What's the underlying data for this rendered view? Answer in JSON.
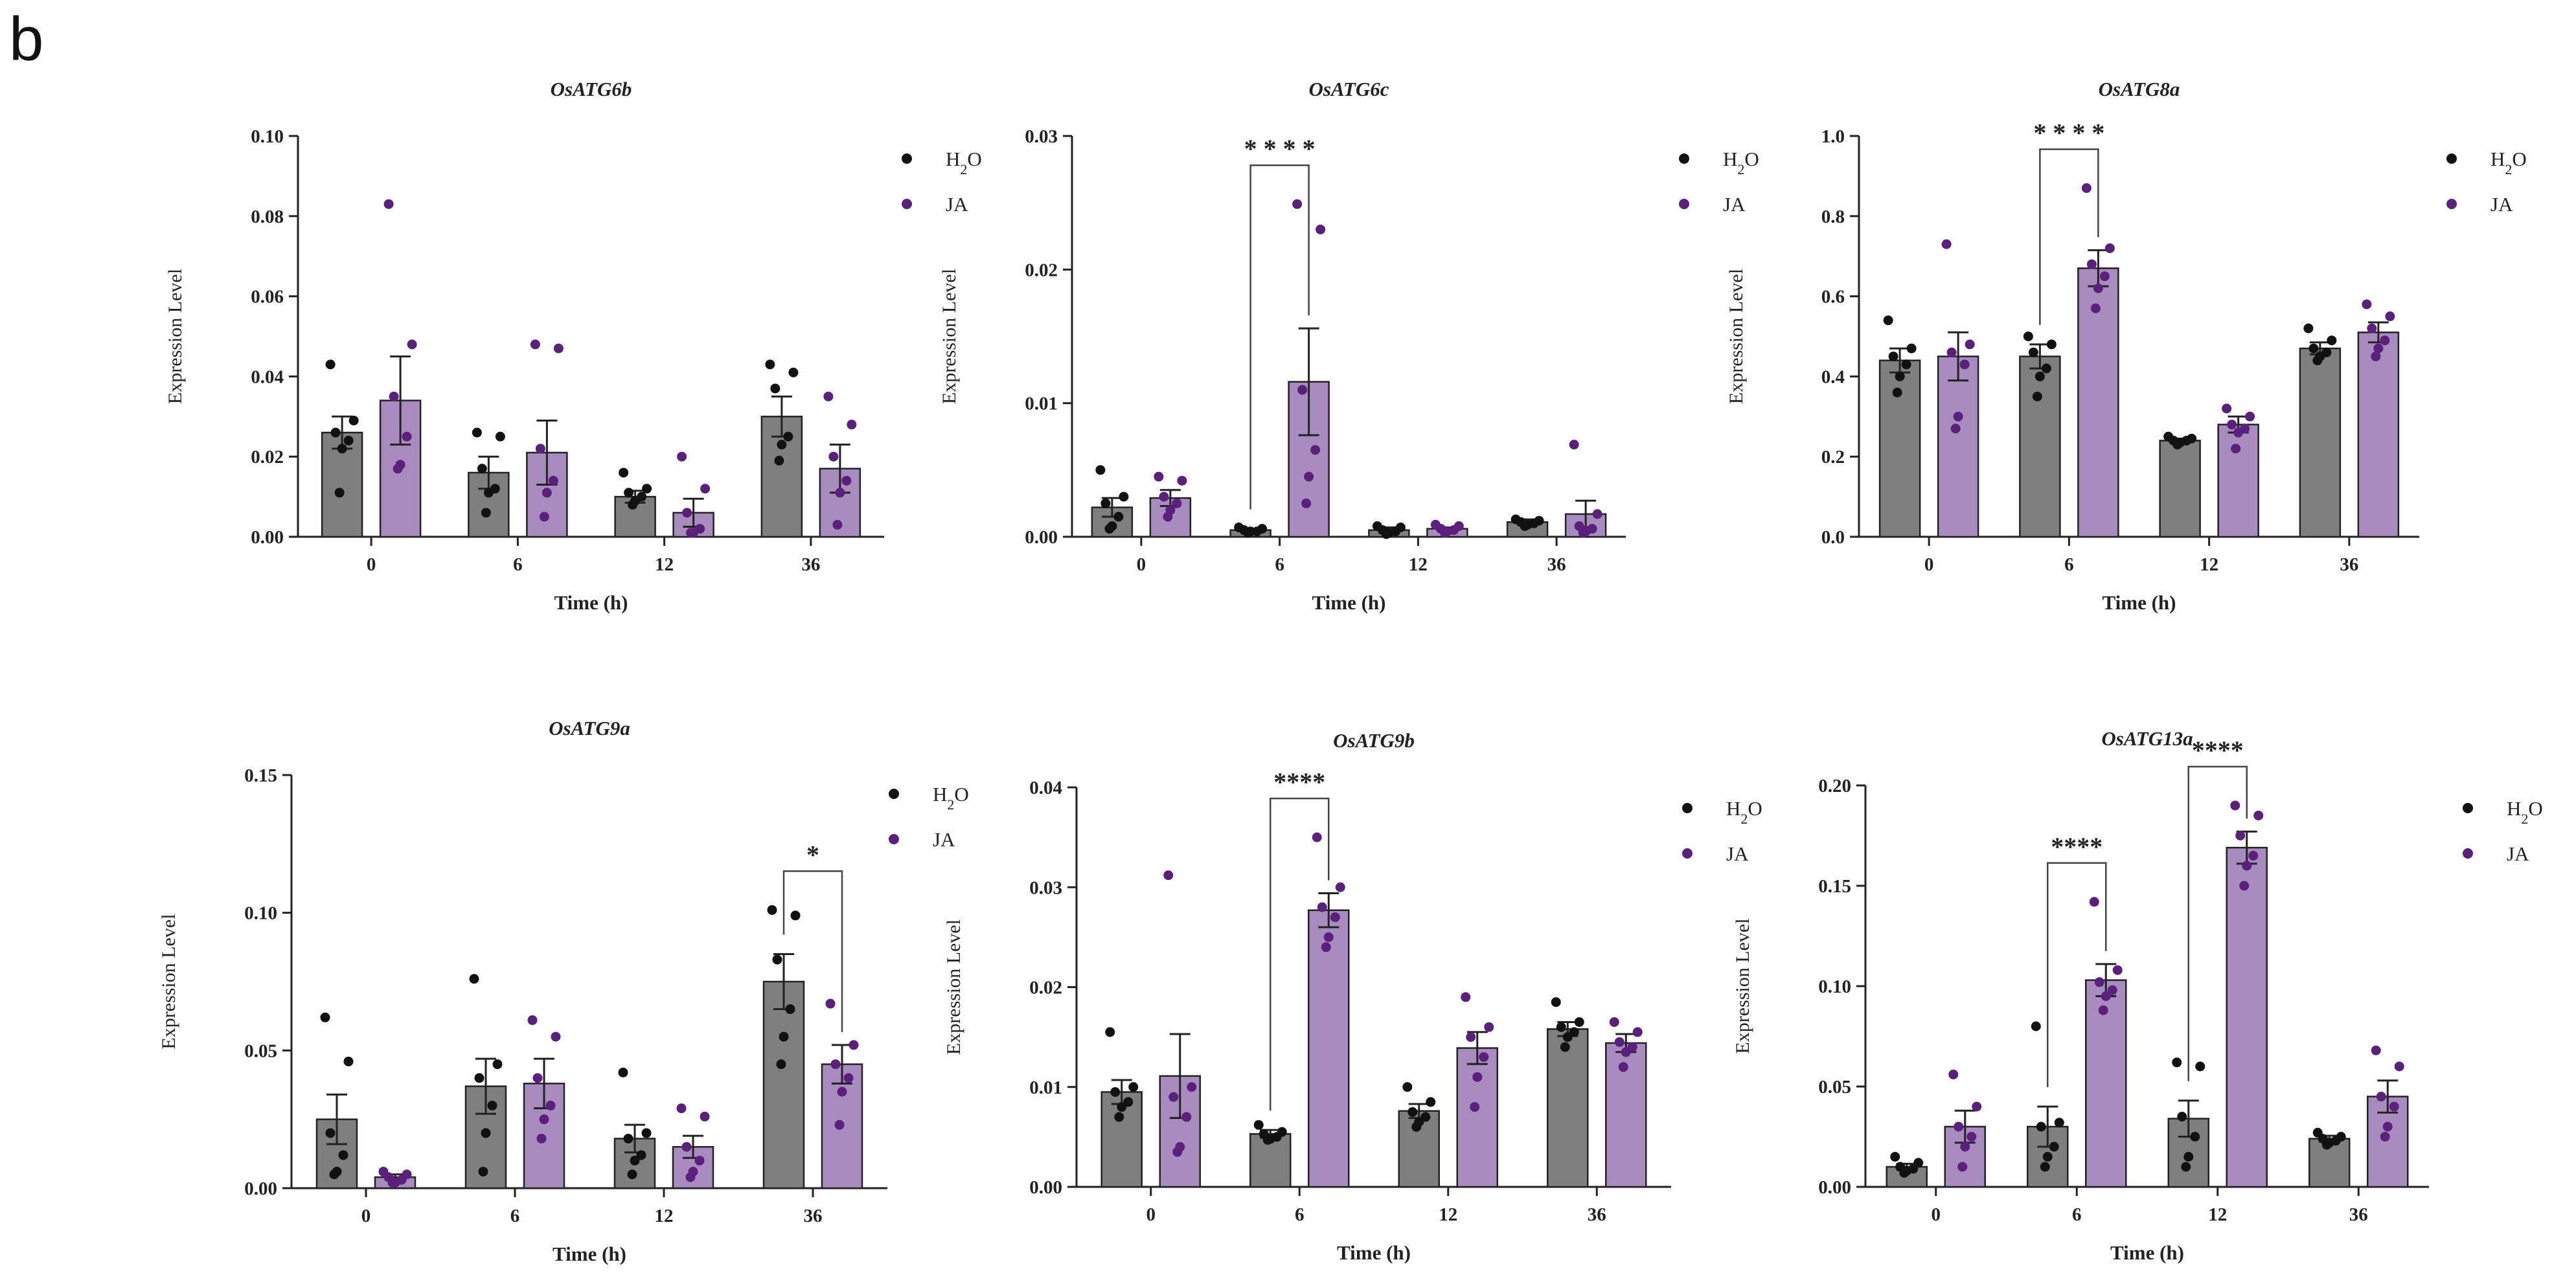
{
  "panel_label": "b",
  "colors": {
    "h2o_bar": "#7f7f7f",
    "ja_bar": "#a88cc0",
    "h2o_dot": "#111111",
    "ja_dot": "#5b1f7c",
    "axis": "#222222"
  },
  "chart_data": [
    {
      "type": "bar",
      "title": "OsATG6b",
      "xlabel": "Time (h)",
      "ylabel": "Expression Level",
      "categories": [
        "0",
        "6",
        "12",
        "36"
      ],
      "ylim": [
        0,
        0.1
      ],
      "yticks": [
        0.0,
        0.02,
        0.04,
        0.06,
        0.08,
        0.1
      ],
      "ytick_labels": [
        "0.00",
        "0.02",
        "0.04",
        "0.06",
        "0.08",
        "0.10"
      ],
      "legend": [
        "H2O",
        "JA"
      ],
      "series": [
        {
          "name": "H2O",
          "values": [
            0.026,
            0.016,
            0.01,
            0.03
          ],
          "sem": [
            0.004,
            0.004,
            0.0015,
            0.005
          ],
          "points": [
            [
              0.043,
              0.029,
              0.026,
              0.024,
              0.022,
              0.011
            ],
            [
              0.026,
              0.025,
              0.017,
              0.012,
              0.011,
              0.006
            ],
            [
              0.016,
              0.012,
              0.011,
              0.01,
              0.009,
              0.008
            ],
            [
              0.043,
              0.041,
              0.037,
              0.025,
              0.023,
              0.019
            ]
          ]
        },
        {
          "name": "JA",
          "values": [
            0.034,
            0.021,
            0.006,
            0.017
          ],
          "sem": [
            0.011,
            0.008,
            0.0035,
            0.006
          ],
          "points": [
            [
              0.083,
              0.048,
              0.035,
              0.025,
              0.018,
              0.017
            ],
            [
              0.048,
              0.047,
              0.022,
              0.014,
              0.011,
              0.005
            ],
            [
              0.02,
              0.012,
              0.006,
              0.002,
              0.001,
              0.001
            ],
            [
              0.035,
              0.028,
              0.02,
              0.014,
              0.011,
              0.003
            ]
          ]
        }
      ],
      "significance": []
    },
    {
      "type": "bar",
      "title": "OsATG6c",
      "xlabel": "Time (h)",
      "ylabel": "Expression Level",
      "categories": [
        "0",
        "6",
        "12",
        "36"
      ],
      "ylim": [
        0,
        0.03
      ],
      "yticks": [
        0.0,
        0.01,
        0.02,
        0.03
      ],
      "ytick_labels": [
        "0.00",
        "0.01",
        "0.02",
        "0.03"
      ],
      "legend": [
        "H2O",
        "JA"
      ],
      "series": [
        {
          "name": "H2O",
          "values": [
            0.0022,
            0.0005,
            0.0005,
            0.0011
          ],
          "sem": [
            0.0007,
            0.0001,
            0.0002,
            0.0002
          ],
          "points": [
            [
              0.005,
              0.003,
              0.0025,
              0.0015,
              0.0008,
              0.0006
            ],
            [
              0.0007,
              0.0006,
              0.0005,
              0.0004,
              0.0004,
              0.0003
            ],
            [
              0.0008,
              0.0007,
              0.0005,
              0.0004,
              0.0003,
              0.0002
            ],
            [
              0.0013,
              0.0012,
              0.0011,
              0.001,
              0.0009,
              0.0008
            ]
          ]
        },
        {
          "name": "JA",
          "values": [
            0.0029,
            0.0116,
            0.0006,
            0.0017
          ],
          "sem": [
            0.0006,
            0.004,
            0.0001,
            0.001
          ],
          "points": [
            [
              0.0045,
              0.0042,
              0.003,
              0.0025,
              0.002,
              0.0015
            ],
            [
              0.0249,
              0.023,
              0.011,
              0.0065,
              0.0045,
              0.0025
            ],
            [
              0.0009,
              0.0008,
              0.0006,
              0.0005,
              0.0004,
              0.0003
            ],
            [
              0.0069,
              0.0017,
              0.0008,
              0.0006,
              0.0004,
              0.0003
            ]
          ]
        }
      ],
      "significance": [
        {
          "label": "* * * *",
          "group": 1
        }
      ]
    },
    {
      "type": "bar",
      "title": "OsATG8a",
      "xlabel": "Time (h)",
      "ylabel": "Expression Level",
      "categories": [
        "0",
        "6",
        "12",
        "36"
      ],
      "ylim": [
        0,
        1.0
      ],
      "yticks": [
        0.0,
        0.2,
        0.4,
        0.6,
        0.8,
        1.0
      ],
      "ytick_labels": [
        "0.0",
        "0.2",
        "0.4",
        "0.6",
        "0.8",
        "1.0"
      ],
      "legend": [
        "H2O",
        "JA"
      ],
      "series": [
        {
          "name": "H2O",
          "values": [
            0.44,
            0.45,
            0.24,
            0.47
          ],
          "sem": [
            0.03,
            0.03,
            0.005,
            0.015
          ],
          "points": [
            [
              0.54,
              0.47,
              0.45,
              0.43,
              0.4,
              0.36
            ],
            [
              0.5,
              0.48,
              0.46,
              0.42,
              0.4,
              0.35
            ],
            [
              0.25,
              0.245,
              0.24,
              0.24,
              0.235,
              0.23
            ],
            [
              0.52,
              0.49,
              0.47,
              0.46,
              0.45,
              0.44
            ]
          ]
        },
        {
          "name": "JA",
          "values": [
            0.45,
            0.67,
            0.28,
            0.51
          ],
          "sem": [
            0.06,
            0.045,
            0.02,
            0.025
          ],
          "points": [
            [
              0.73,
              0.48,
              0.46,
              0.43,
              0.3,
              0.27
            ],
            [
              0.87,
              0.72,
              0.68,
              0.65,
              0.62,
              0.57
            ],
            [
              0.32,
              0.3,
              0.28,
              0.27,
              0.26,
              0.22
            ],
            [
              0.58,
              0.55,
              0.52,
              0.49,
              0.47,
              0.45
            ]
          ]
        }
      ],
      "significance": [
        {
          "label": "* * * *",
          "group": 1
        }
      ]
    },
    {
      "type": "bar",
      "title": "OsATG9a",
      "xlabel": "Time (h)",
      "ylabel": "Expression Level",
      "categories": [
        "0",
        "6",
        "12",
        "36"
      ],
      "ylim": [
        0,
        0.15
      ],
      "yticks": [
        0.0,
        0.05,
        0.1,
        0.15
      ],
      "ytick_labels": [
        "0.00",
        "0.05",
        "0.10",
        "0.15"
      ],
      "legend": [
        "H2O",
        "JA"
      ],
      "series": [
        {
          "name": "H2O",
          "values": [
            0.025,
            0.037,
            0.018,
            0.075
          ],
          "sem": [
            0.009,
            0.01,
            0.005,
            0.01
          ],
          "points": [
            [
              0.062,
              0.046,
              0.02,
              0.012,
              0.006,
              0.005
            ],
            [
              0.076,
              0.045,
              0.04,
              0.03,
              0.02,
              0.006
            ],
            [
              0.042,
              0.02,
              0.018,
              0.012,
              0.01,
              0.005
            ],
            [
              0.101,
              0.099,
              0.083,
              0.065,
              0.055,
              0.045
            ]
          ]
        },
        {
          "name": "JA",
          "values": [
            0.004,
            0.038,
            0.015,
            0.045
          ],
          "sem": [
            0.001,
            0.009,
            0.004,
            0.007
          ],
          "points": [
            [
              0.006,
              0.005,
              0.004,
              0.003,
              0.002,
              0.002
            ],
            [
              0.061,
              0.055,
              0.04,
              0.03,
              0.025,
              0.018
            ],
            [
              0.029,
              0.026,
              0.015,
              0.01,
              0.006,
              0.004
            ],
            [
              0.067,
              0.052,
              0.045,
              0.04,
              0.035,
              0.023
            ]
          ]
        }
      ],
      "significance": [
        {
          "label": "*",
          "group": 3
        }
      ]
    },
    {
      "type": "bar",
      "title": "OsATG9b",
      "xlabel": "Time (h)",
      "ylabel": "Expression Level",
      "categories": [
        "0",
        "6",
        "12",
        "36"
      ],
      "ylim": [
        0,
        0.04
      ],
      "yticks": [
        0.0,
        0.01,
        0.02,
        0.03,
        0.04
      ],
      "ytick_labels": [
        "0.00",
        "0.01",
        "0.02",
        "0.03",
        "0.04"
      ],
      "legend": [
        "H2O",
        "JA"
      ],
      "series": [
        {
          "name": "H2O",
          "values": [
            0.0095,
            0.0053,
            0.0076,
            0.0158
          ],
          "sem": [
            0.0012,
            0.0004,
            0.0007,
            0.0007
          ],
          "points": [
            [
              0.0155,
              0.01,
              0.0095,
              0.0085,
              0.008,
              0.007
            ],
            [
              0.0062,
              0.0055,
              0.0053,
              0.005,
              0.0048,
              0.0047
            ],
            [
              0.01,
              0.0085,
              0.0075,
              0.007,
              0.0065,
              0.006
            ],
            [
              0.0185,
              0.0165,
              0.016,
              0.0155,
              0.015,
              0.014
            ]
          ]
        },
        {
          "name": "JA",
          "values": [
            0.0111,
            0.0277,
            0.0139,
            0.0144
          ],
          "sem": [
            0.0042,
            0.0017,
            0.0016,
            0.0009
          ],
          "points": [
            [
              0.0312,
              0.01,
              0.009,
              0.007,
              0.004,
              0.0035
            ],
            [
              0.035,
              0.03,
              0.028,
              0.027,
              0.025,
              0.024
            ],
            [
              0.019,
              0.016,
              0.015,
              0.013,
              0.011,
              0.008
            ],
            [
              0.0165,
              0.0155,
              0.0145,
              0.014,
              0.0135,
              0.012
            ]
          ]
        }
      ],
      "significance": [
        {
          "label": "****",
          "group": 1
        }
      ]
    },
    {
      "type": "bar",
      "title": "OsATG13a",
      "xlabel": "Time (h)",
      "ylabel": "Expression Level",
      "categories": [
        "0",
        "6",
        "12",
        "36"
      ],
      "ylim": [
        0,
        0.2
      ],
      "yticks": [
        0.0,
        0.05,
        0.1,
        0.15,
        0.2
      ],
      "ytick_labels": [
        "0.00",
        "0.05",
        "0.10",
        "0.15",
        "0.20"
      ],
      "legend": [
        "H2O",
        "JA"
      ],
      "series": [
        {
          "name": "H2O",
          "values": [
            0.01,
            0.03,
            0.034,
            0.024
          ],
          "sem": [
            0.0015,
            0.01,
            0.009,
            0.0015
          ],
          "points": [
            [
              0.015,
              0.012,
              0.01,
              0.009,
              0.008,
              0.007
            ],
            [
              0.08,
              0.032,
              0.03,
              0.02,
              0.015,
              0.01
            ],
            [
              0.062,
              0.06,
              0.035,
              0.025,
              0.015,
              0.01
            ],
            [
              0.027,
              0.025,
              0.024,
              0.023,
              0.022,
              0.021
            ]
          ]
        },
        {
          "name": "JA",
          "values": [
            0.03,
            0.103,
            0.169,
            0.045
          ],
          "sem": [
            0.008,
            0.008,
            0.008,
            0.008
          ],
          "points": [
            [
              0.056,
              0.04,
              0.03,
              0.025,
              0.02,
              0.01
            ],
            [
              0.142,
              0.108,
              0.102,
              0.098,
              0.095,
              0.088
            ],
            [
              0.19,
              0.185,
              0.175,
              0.165,
              0.16,
              0.15
            ],
            [
              0.068,
              0.06,
              0.045,
              0.04,
              0.03,
              0.025
            ]
          ]
        }
      ],
      "significance": [
        {
          "label": "****",
          "group": 1
        },
        {
          "label": "****",
          "group": 2
        }
      ]
    }
  ]
}
